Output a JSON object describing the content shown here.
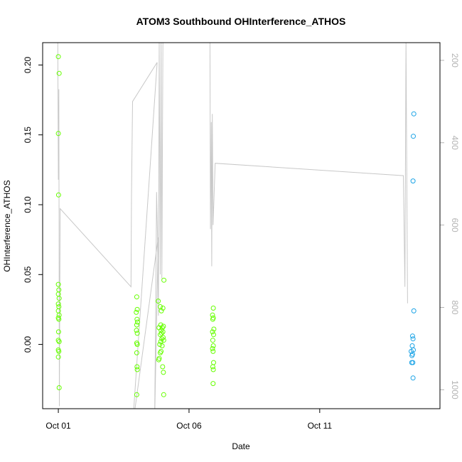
{
  "chart_data": {
    "type": "scatter",
    "title": "ATOM3 Southbound OHInterference_ATHOS",
    "xlabel": "Date",
    "ylabel": "OHInterference_ATHOS",
    "x_unit": "day of October",
    "xlim": [
      0.4,
      15.6
    ],
    "ylim": [
      -0.046,
      0.216
    ],
    "x_ticks": [
      {
        "value": 1,
        "label": "Oct 01"
      },
      {
        "value": 6,
        "label": "Oct 06"
      },
      {
        "value": 11,
        "label": "Oct 11"
      }
    ],
    "y_ticks": [
      {
        "value": 0.0,
        "label": "0.00"
      },
      {
        "value": 0.05,
        "label": "0.05"
      },
      {
        "value": 0.1,
        "label": "0.10"
      },
      {
        "value": 0.15,
        "label": "0.15"
      },
      {
        "value": 0.2,
        "label": "0.20"
      }
    ],
    "y2_ticks": [
      {
        "value": 200,
        "label": "200"
      },
      {
        "value": 400,
        "label": "400"
      },
      {
        "value": 600,
        "label": "600"
      },
      {
        "value": 800,
        "label": "800"
      },
      {
        "value": 1000,
        "label": "1000"
      }
    ],
    "y2_range_top_to_bottom": [
      157,
      1046
    ],
    "y2_reversed": true,
    "grid": false,
    "colors": {
      "green": "#66ff00",
      "blue": "#1aa3e6",
      "line": "#c8c8c8",
      "axis": "#000000",
      "axis2": "#b3b3b3"
    },
    "series": [
      {
        "color": "green",
        "points": [
          [
            1.0,
            0.206
          ],
          [
            1.03,
            0.194
          ],
          [
            1.0,
            0.151
          ],
          [
            1.01,
            0.107
          ],
          [
            1.0,
            0.043
          ],
          [
            1.02,
            0.039
          ],
          [
            1.0,
            0.036
          ],
          [
            1.03,
            0.033
          ],
          [
            1.0,
            0.029
          ],
          [
            1.02,
            0.027
          ],
          [
            1.0,
            0.024
          ],
          [
            1.03,
            0.021
          ],
          [
            1.0,
            0.019
          ],
          [
            1.02,
            0.018
          ],
          [
            1.01,
            0.009
          ],
          [
            1.0,
            0.003
          ],
          [
            1.03,
            0.002
          ],
          [
            1.0,
            -0.004
          ],
          [
            1.02,
            -0.005
          ],
          [
            1.0,
            -0.009
          ],
          [
            1.03,
            -0.031
          ],
          [
            4.0,
            0.034
          ],
          [
            4.02,
            0.025
          ],
          [
            3.98,
            0.023
          ],
          [
            4.01,
            0.018
          ],
          [
            4.03,
            0.016
          ],
          [
            4.0,
            0.014
          ],
          [
            3.99,
            0.01
          ],
          [
            4.02,
            0.008
          ],
          [
            4.0,
            0.001
          ],
          [
            4.02,
            0.0
          ],
          [
            4.0,
            -0.006
          ],
          [
            4.01,
            -0.016
          ],
          [
            4.02,
            -0.018
          ],
          [
            4.0,
            -0.036
          ],
          [
            4.82,
            0.031
          ],
          [
            4.9,
            0.027
          ],
          [
            5.0,
            0.026
          ],
          [
            5.04,
            0.046
          ],
          [
            4.94,
            0.024
          ],
          [
            4.92,
            0.014
          ],
          [
            4.98,
            0.012
          ],
          [
            4.85,
            0.012
          ],
          [
            5.02,
            0.013
          ],
          [
            4.93,
            0.01
          ],
          [
            5.0,
            0.009
          ],
          [
            4.95,
            0.008
          ],
          [
            4.9,
            0.007
          ],
          [
            5.01,
            0.005
          ],
          [
            4.96,
            0.004
          ],
          [
            4.92,
            0.002
          ],
          [
            5.03,
            0.003
          ],
          [
            4.88,
            0.0
          ],
          [
            4.97,
            -0.001
          ],
          [
            4.93,
            -0.005
          ],
          [
            4.9,
            -0.006
          ],
          [
            4.86,
            -0.01
          ],
          [
            4.84,
            -0.011
          ],
          [
            4.99,
            -0.016
          ],
          [
            5.02,
            -0.02
          ],
          [
            5.03,
            -0.036
          ],
          [
            6.93,
            0.026
          ],
          [
            6.9,
            0.021
          ],
          [
            6.93,
            0.019
          ],
          [
            6.91,
            0.018
          ],
          [
            6.95,
            0.011
          ],
          [
            6.9,
            0.009
          ],
          [
            6.94,
            0.007
          ],
          [
            6.91,
            0.003
          ],
          [
            6.93,
            -0.001
          ],
          [
            6.9,
            -0.003
          ],
          [
            6.92,
            -0.005
          ],
          [
            6.94,
            -0.013
          ],
          [
            6.91,
            -0.016
          ],
          [
            6.93,
            -0.018
          ],
          [
            6.92,
            -0.028
          ]
        ]
      },
      {
        "color": "blue",
        "points": [
          [
            14.6,
            0.165
          ],
          [
            14.58,
            0.149
          ],
          [
            14.57,
            0.117
          ],
          [
            14.6,
            0.024
          ],
          [
            14.55,
            0.006
          ],
          [
            14.57,
            0.004
          ],
          [
            14.54,
            -0.001
          ],
          [
            14.58,
            -0.004
          ],
          [
            14.5,
            -0.005
          ],
          [
            14.55,
            -0.007
          ],
          [
            14.53,
            -0.008
          ],
          [
            14.56,
            -0.013
          ],
          [
            14.52,
            -0.013
          ],
          [
            14.57,
            -0.024
          ]
        ]
      }
    ],
    "secondary_line": {
      "color": "line",
      "points": [
        [
          0.98,
          157
        ],
        [
          1.0,
          490
        ],
        [
          1.02,
          270
        ],
        [
          1.04,
          1040
        ],
        [
          1.07,
          560
        ],
        [
          3.78,
          750
        ],
        [
          3.8,
          530
        ],
        [
          3.84,
          300
        ],
        [
          4.78,
          205
        ],
        [
          3.84,
          1090
        ],
        [
          4.82,
          630
        ],
        [
          4.68,
          1090
        ],
        [
          4.72,
          850
        ],
        [
          4.76,
          520
        ],
        [
          4.8,
          640
        ],
        [
          4.83,
          820
        ],
        [
          4.86,
          157
        ],
        [
          4.9,
          720
        ],
        [
          4.93,
          157
        ],
        [
          4.96,
          730
        ],
        [
          5.0,
          157
        ],
        [
          5.08,
          157
        ],
        [
          5.4,
          157
        ],
        [
          6.8,
          157
        ],
        [
          6.82,
          610
        ],
        [
          6.85,
          350
        ],
        [
          6.87,
          700
        ],
        [
          6.89,
          330
        ],
        [
          6.92,
          600
        ],
        [
          7.0,
          450
        ],
        [
          14.2,
          480
        ],
        [
          14.26,
          750
        ],
        [
          14.3,
          157
        ],
        [
          14.36,
          790
        ]
      ]
    }
  }
}
